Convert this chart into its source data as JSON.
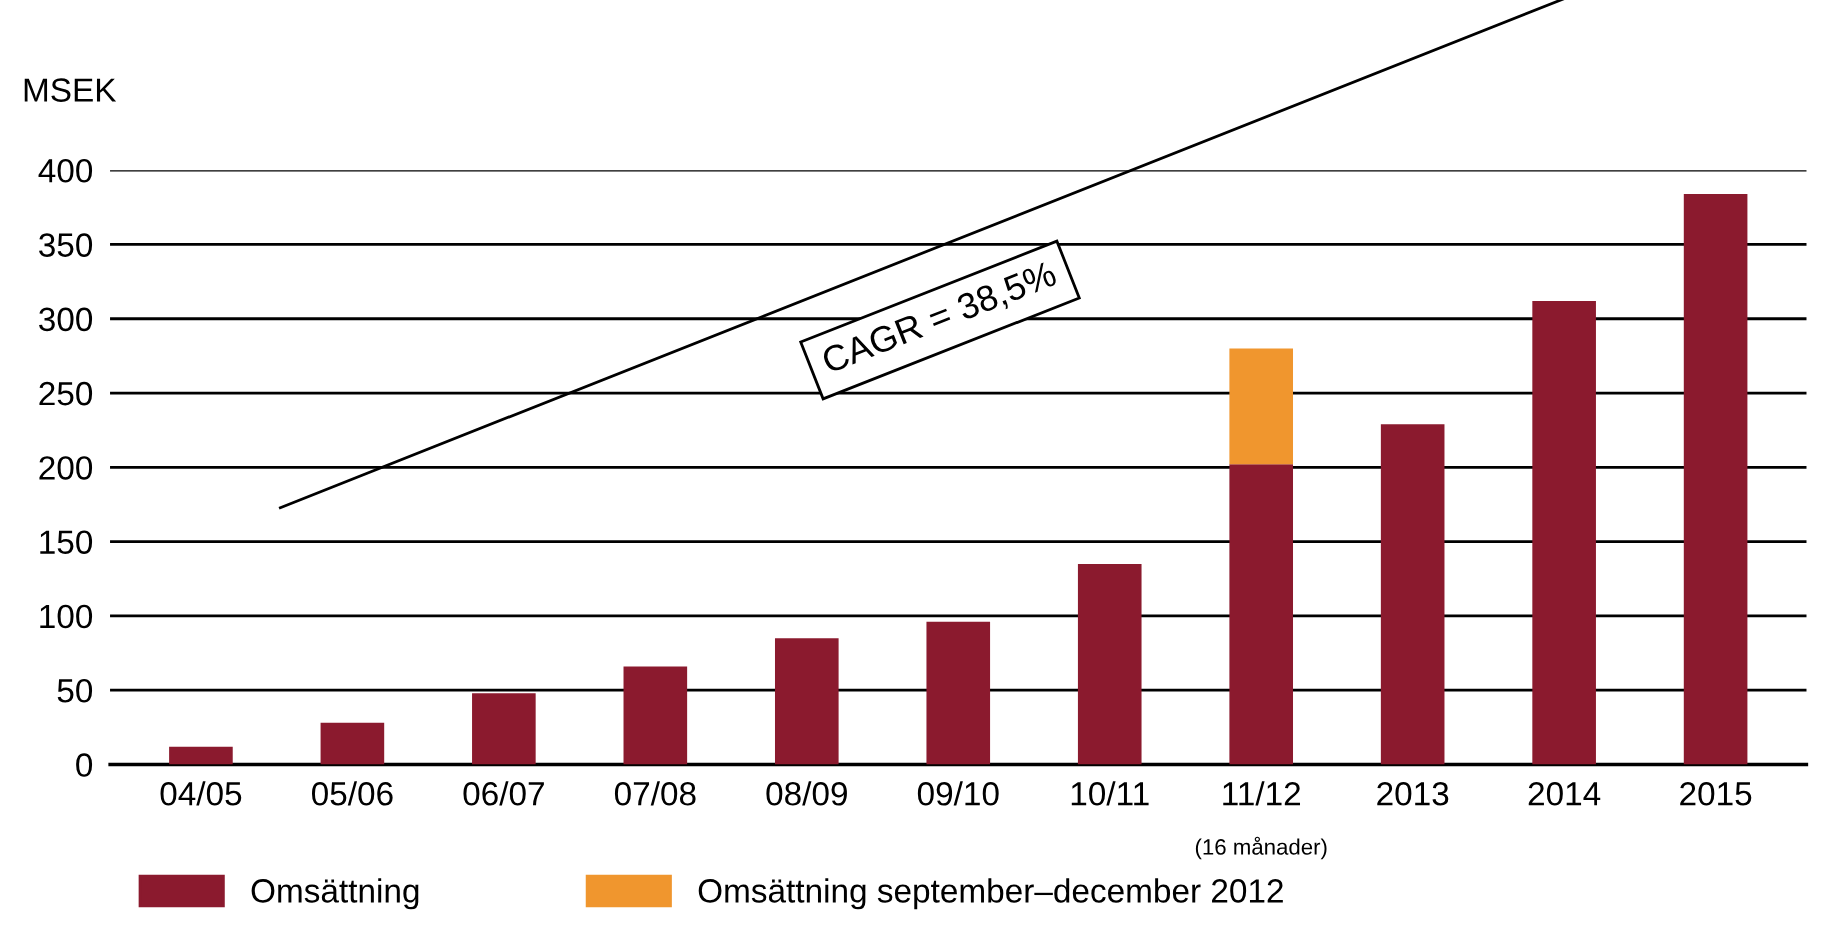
{
  "chart_data": {
    "type": "bar",
    "stacked": true,
    "ylabel": "MSEK",
    "categories": [
      "04/05",
      "05/06",
      "06/07",
      "07/08",
      "08/09",
      "09/10",
      "10/11",
      "11/12\n(16 månader)",
      "2013",
      "2014",
      "2015"
    ],
    "series": [
      {
        "name": "Omsättning",
        "color": "#8b1a2e",
        "values": [
          12,
          28,
          48,
          66,
          85,
          96,
          135,
          202,
          229,
          312,
          384
        ]
      },
      {
        "name": "Omsättning september–december 2012",
        "color": "#f0962e",
        "values": [
          null,
          null,
          null,
          null,
          null,
          null,
          null,
          78,
          null,
          null,
          null
        ]
      }
    ],
    "ylim": [
      0,
      400
    ],
    "yticks": [
      0,
      50,
      100,
      150,
      200,
      250,
      300,
      350,
      400
    ],
    "grid": "y",
    "legend": "bottom",
    "annotations": [
      "CAGR = 38,5%"
    ]
  }
}
